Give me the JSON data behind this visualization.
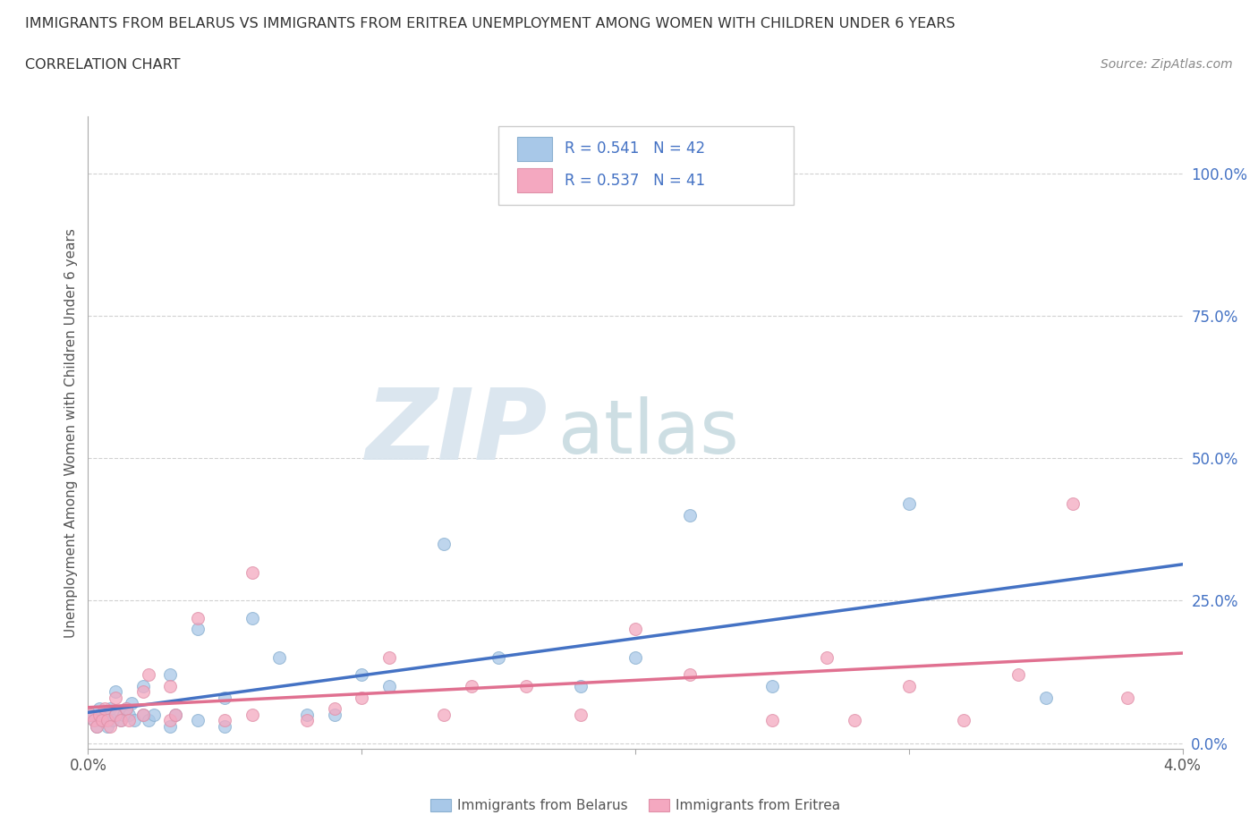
{
  "title_line1": "IMMIGRANTS FROM BELARUS VS IMMIGRANTS FROM ERITREA UNEMPLOYMENT AMONG WOMEN WITH CHILDREN UNDER 6 YEARS",
  "title_line2": "CORRELATION CHART",
  "source": "Source: ZipAtlas.com",
  "ylabel": "Unemployment Among Women with Children Under 6 years",
  "xlim": [
    0.0,
    0.04
  ],
  "ylim": [
    -0.01,
    1.1
  ],
  "xticks": [
    0.0,
    0.01,
    0.02,
    0.03,
    0.04
  ],
  "xticklabels": [
    "0.0%",
    "",
    "",
    "",
    "4.0%"
  ],
  "ytick_positions": [
    0.0,
    0.25,
    0.5,
    0.75,
    1.0
  ],
  "yticklabels": [
    "0.0%",
    "25.0%",
    "50.0%",
    "75.0%",
    "100.0%"
  ],
  "belarus_color": "#a8c8e8",
  "eritrea_color": "#f4a8c0",
  "belarus_line_color": "#4472c4",
  "eritrea_line_color": "#e07090",
  "legend_r_belarus": "R = 0.541",
  "legend_n_belarus": "N = 42",
  "legend_r_eritrea": "R = 0.537",
  "legend_n_eritrea": "N = 41",
  "grid_color": "#cccccc",
  "background_color": "#ffffff",
  "belarus_scatter_x": [
    0.0001,
    0.0002,
    0.0003,
    0.0004,
    0.0005,
    0.0006,
    0.0007,
    0.0008,
    0.0009,
    0.001,
    0.001,
    0.0012,
    0.0013,
    0.0014,
    0.0015,
    0.0016,
    0.0017,
    0.002,
    0.002,
    0.0022,
    0.0024,
    0.003,
    0.003,
    0.0032,
    0.004,
    0.004,
    0.005,
    0.005,
    0.006,
    0.007,
    0.008,
    0.009,
    0.01,
    0.011,
    0.013,
    0.015,
    0.018,
    0.02,
    0.022,
    0.025,
    0.03,
    0.035
  ],
  "belarus_scatter_y": [
    0.05,
    0.04,
    0.03,
    0.06,
    0.04,
    0.05,
    0.03,
    0.06,
    0.04,
    0.05,
    0.09,
    0.04,
    0.05,
    0.06,
    0.05,
    0.07,
    0.04,
    0.05,
    0.1,
    0.04,
    0.05,
    0.03,
    0.12,
    0.05,
    0.04,
    0.2,
    0.03,
    0.08,
    0.22,
    0.15,
    0.05,
    0.05,
    0.12,
    0.1,
    0.35,
    0.15,
    0.1,
    0.15,
    0.4,
    0.1,
    0.42,
    0.08
  ],
  "eritrea_scatter_x": [
    0.0001,
    0.0002,
    0.0003,
    0.0004,
    0.0005,
    0.0006,
    0.0007,
    0.0008,
    0.001,
    0.001,
    0.0012,
    0.0014,
    0.0015,
    0.002,
    0.002,
    0.0022,
    0.003,
    0.003,
    0.0032,
    0.004,
    0.005,
    0.006,
    0.006,
    0.008,
    0.009,
    0.01,
    0.011,
    0.013,
    0.014,
    0.016,
    0.018,
    0.02,
    0.022,
    0.025,
    0.027,
    0.028,
    0.03,
    0.032,
    0.034,
    0.036,
    0.038
  ],
  "eritrea_scatter_y": [
    0.05,
    0.04,
    0.03,
    0.05,
    0.04,
    0.06,
    0.04,
    0.03,
    0.05,
    0.08,
    0.04,
    0.06,
    0.04,
    0.05,
    0.09,
    0.12,
    0.04,
    0.1,
    0.05,
    0.22,
    0.04,
    0.3,
    0.05,
    0.04,
    0.06,
    0.08,
    0.15,
    0.05,
    0.1,
    0.1,
    0.05,
    0.2,
    0.12,
    0.04,
    0.15,
    0.04,
    0.1,
    0.04,
    0.12,
    0.42,
    0.08
  ]
}
